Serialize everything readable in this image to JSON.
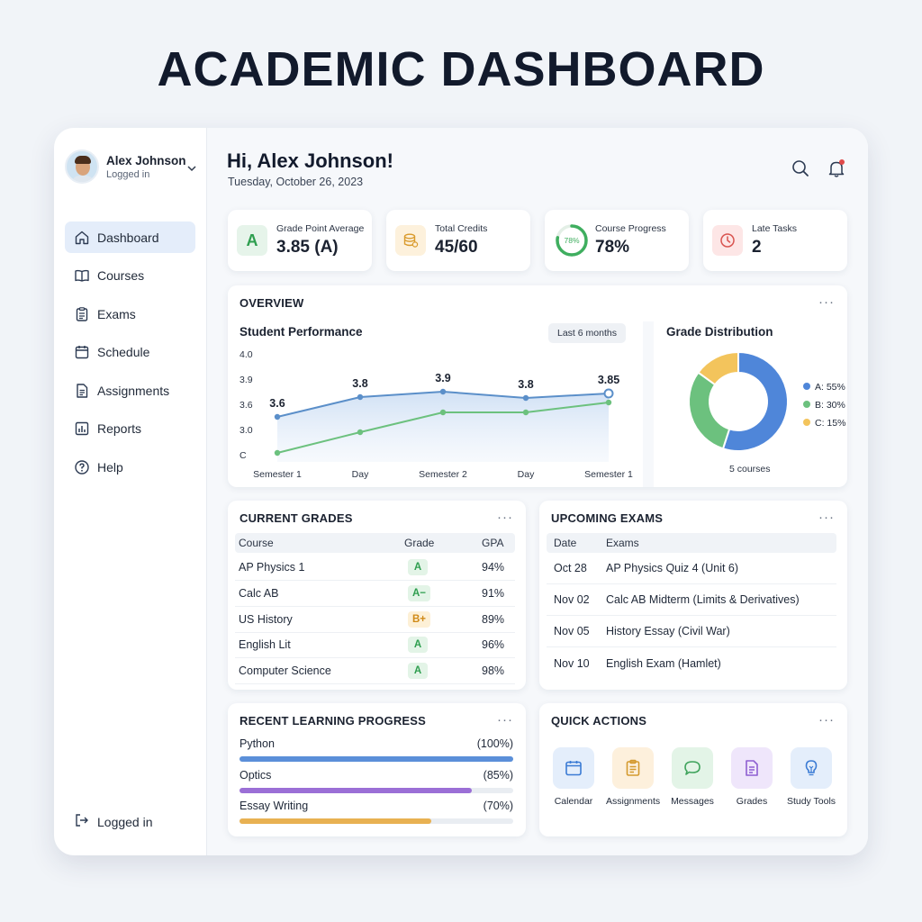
{
  "page_title": "ACADEMIC DASHBOARD",
  "user": {
    "name": "Alex Johnson",
    "status": "Logged in"
  },
  "sidebar": {
    "items": [
      {
        "label": "Dashboard",
        "icon": "home-icon",
        "active": true
      },
      {
        "label": "Courses",
        "icon": "book-icon"
      },
      {
        "label": "Exams",
        "icon": "clipboard-icon"
      },
      {
        "label": "Schedule",
        "icon": "calendar-icon"
      },
      {
        "label": "Assignments",
        "icon": "document-icon"
      },
      {
        "label": "Reports",
        "icon": "bar-chart-icon"
      },
      {
        "label": "Help",
        "icon": "help-icon"
      }
    ],
    "footer_label": "Logged in"
  },
  "header": {
    "greeting": "Hi, Alex Johnson!",
    "date": "Tuesday, October 26, 2023"
  },
  "stats": [
    {
      "label": "Grade Point Average",
      "value": "3.85 (A)",
      "icon_text": "A",
      "icon": "grade-a-icon",
      "color": "#e6f4ea",
      "accent": "#2e9e4f"
    },
    {
      "label": "Total Credits",
      "value": "45/60",
      "icon": "database-icon",
      "color": "#fdf1dc",
      "accent": "#d99a2b"
    },
    {
      "label": "Course Progress",
      "value": "78%",
      "ring_text": "78%",
      "progress": 0.78,
      "icon": "progress-ring-icon",
      "accent": "#3fae5f"
    },
    {
      "label": "Late Tasks",
      "value": "2",
      "icon": "clock-icon",
      "color": "#fde6e6",
      "accent": "#d9534f"
    }
  ],
  "overview": {
    "title": "OVERVIEW",
    "performance_title": "Student Performance",
    "range_label": "Last 6 months",
    "distribution_title": "Grade Distribution",
    "distribution_footer": "5 courses"
  },
  "chart_data": [
    {
      "type": "line",
      "title": "Student Performance",
      "categories": [
        "Semester 1",
        "Day",
        "Semester 2",
        "Day",
        "Semester 1"
      ],
      "y_tick_labels": [
        "4.0",
        "3.9",
        "3.6",
        "3.0",
        "C"
      ],
      "series": [
        {
          "values": [
            3.6,
            3.8,
            3.9,
            3.8,
            3.85
          ],
          "labels": [
            "3.6",
            "3.8",
            "3.9",
            "3.8",
            "3.85"
          ],
          "color": "#5b8fc9",
          "area": true
        },
        {
          "values": [
            3.2,
            3.38,
            3.56,
            3.56,
            3.7
          ],
          "color": "#6cc17e"
        }
      ],
      "grid": false
    },
    {
      "type": "pie",
      "title": "Grade Distribution",
      "donut": true,
      "slices": [
        {
          "label": "A: 55%",
          "value": 55,
          "color": "#4f86d9"
        },
        {
          "label": "B: 30%",
          "value": 30,
          "color": "#6cc17e"
        },
        {
          "label": "C: 15%",
          "value": 15,
          "color": "#f3c45c"
        }
      ],
      "legend": "right"
    }
  ],
  "grades": {
    "title": "CURRENT GRADES",
    "headers": [
      "Course",
      "Grade",
      "GPA"
    ],
    "rows": [
      {
        "course": "AP Physics 1",
        "grade": "A",
        "gpa": "94%",
        "tone": "green"
      },
      {
        "course": "Calc AB",
        "grade": "A−",
        "gpa": "91%",
        "tone": "green"
      },
      {
        "course": "US History",
        "grade": "B+",
        "gpa": "89%",
        "tone": "amber"
      },
      {
        "course": "English Lit",
        "grade": "A",
        "gpa": "96%",
        "tone": "green"
      },
      {
        "course": "Computer Science",
        "grade": "A",
        "gpa": "98%",
        "tone": "green"
      }
    ]
  },
  "exams": {
    "title": "UPCOMING EXAMS",
    "headers": [
      "Date",
      "Exams"
    ],
    "rows": [
      {
        "date": "Oct 28",
        "exam": "AP Physics Quiz 4 (Unit 6)"
      },
      {
        "date": "Nov 02",
        "exam": "Calc AB Midterm (Limits & Derivatives)"
      },
      {
        "date": "Nov 05",
        "exam": "History Essay (Civil War)"
      },
      {
        "date": "Nov 10",
        "exam": "English Exam (Hamlet)"
      }
    ]
  },
  "learning": {
    "title": "RECENT LEARNING PROGRESS",
    "items": [
      {
        "label": "Python",
        "pct": "(100%)",
        "value": 1.0,
        "color": "#5b8fd9"
      },
      {
        "label": "Optics",
        "pct": "(85%)",
        "value": 0.85,
        "color": "#9b6fd6"
      },
      {
        "label": "Essay Writing",
        "pct": "(70%)",
        "value": 0.7,
        "color": "#e8b152"
      }
    ]
  },
  "quick_actions": {
    "title": "QUICK ACTIONS",
    "items": [
      {
        "label": "Calendar",
        "icon": "calendar-icon",
        "bg": "#e4eefb",
        "fg": "#3b7bd4"
      },
      {
        "label": "Assignments",
        "icon": "clipboard-icon",
        "bg": "#fdf0dc",
        "fg": "#d49a2e"
      },
      {
        "label": "Messages",
        "icon": "chat-icon",
        "bg": "#e3f4e7",
        "fg": "#3fa35c"
      },
      {
        "label": "Grades",
        "icon": "document-icon",
        "bg": "#efe6fb",
        "fg": "#8e5fd1"
      },
      {
        "label": "Study Tools",
        "icon": "lightbulb-icon",
        "bg": "#e4eefb",
        "fg": "#3b7bd4"
      }
    ]
  },
  "more_label": "···"
}
